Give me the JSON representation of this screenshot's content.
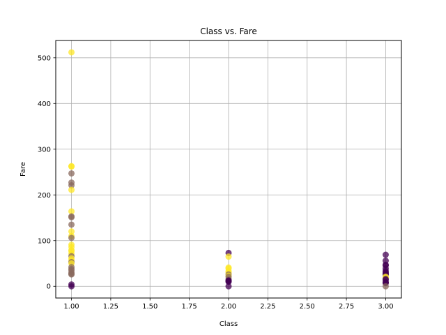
{
  "chart_data": {
    "type": "scatter",
    "title": "Class vs. Fare",
    "xlabel": "Class",
    "ylabel": "Fare",
    "xlim": [
      0.9,
      3.1
    ],
    "ylim": [
      -25.6,
      537.9
    ],
    "xticks": [
      "1.00",
      "1.25",
      "1.50",
      "1.75",
      "2.00",
      "2.25",
      "2.50",
      "2.75",
      "3.00"
    ],
    "yticks": [
      "0",
      "100",
      "200",
      "300",
      "400",
      "500"
    ],
    "grid": true,
    "colors": {
      "survived": "#fde725",
      "died": "#440154",
      "mixed": "#8a6a5e"
    },
    "points": [
      {
        "x": 1,
        "y": 512,
        "c": "survived"
      },
      {
        "x": 1,
        "y": 263,
        "c": "survived"
      },
      {
        "x": 1,
        "y": 262,
        "c": "survived"
      },
      {
        "x": 1,
        "y": 247,
        "c": "mixed"
      },
      {
        "x": 1,
        "y": 227,
        "c": "mixed"
      },
      {
        "x": 1,
        "y": 221,
        "c": "mixed"
      },
      {
        "x": 1,
        "y": 211,
        "c": "survived"
      },
      {
        "x": 1,
        "y": 164,
        "c": "survived"
      },
      {
        "x": 1,
        "y": 153,
        "c": "mixed"
      },
      {
        "x": 1,
        "y": 151,
        "c": "mixed"
      },
      {
        "x": 1,
        "y": 135,
        "c": "mixed"
      },
      {
        "x": 1,
        "y": 120,
        "c": "survived"
      },
      {
        "x": 1,
        "y": 110,
        "c": "survived"
      },
      {
        "x": 1,
        "y": 106,
        "c": "mixed"
      },
      {
        "x": 1,
        "y": 91,
        "c": "survived"
      },
      {
        "x": 1,
        "y": 86,
        "c": "survived"
      },
      {
        "x": 1,
        "y": 79,
        "c": "survived"
      },
      {
        "x": 1,
        "y": 77,
        "c": "survived"
      },
      {
        "x": 1,
        "y": 71,
        "c": "survived"
      },
      {
        "x": 1,
        "y": 66,
        "c": "mixed"
      },
      {
        "x": 1,
        "y": 61,
        "c": "survived"
      },
      {
        "x": 1,
        "y": 57,
        "c": "survived"
      },
      {
        "x": 1,
        "y": 53,
        "c": "mixed"
      },
      {
        "x": 1,
        "y": 50,
        "c": "survived"
      },
      {
        "x": 1,
        "y": 42,
        "c": "mixed"
      },
      {
        "x": 1,
        "y": 38,
        "c": "mixed"
      },
      {
        "x": 1,
        "y": 35,
        "c": "mixed"
      },
      {
        "x": 1,
        "y": 30,
        "c": "mixed"
      },
      {
        "x": 1,
        "y": 27,
        "c": "mixed"
      },
      {
        "x": 1,
        "y": 26,
        "c": "mixed"
      },
      {
        "x": 1,
        "y": 4,
        "c": "died"
      },
      {
        "x": 1,
        "y": 0,
        "c": "died"
      },
      {
        "x": 2,
        "y": 73,
        "c": "died"
      },
      {
        "x": 2,
        "y": 65,
        "c": "survived"
      },
      {
        "x": 2,
        "y": 41,
        "c": "survived"
      },
      {
        "x": 2,
        "y": 39,
        "c": "survived"
      },
      {
        "x": 2,
        "y": 33,
        "c": "survived"
      },
      {
        "x": 2,
        "y": 30,
        "c": "survived"
      },
      {
        "x": 2,
        "y": 26,
        "c": "mixed"
      },
      {
        "x": 2,
        "y": 23,
        "c": "survived"
      },
      {
        "x": 2,
        "y": 21,
        "c": "mixed"
      },
      {
        "x": 2,
        "y": 16,
        "c": "mixed"
      },
      {
        "x": 2,
        "y": 13,
        "c": "died"
      },
      {
        "x": 2,
        "y": 12,
        "c": "died"
      },
      {
        "x": 2,
        "y": 11,
        "c": "died"
      },
      {
        "x": 2,
        "y": 10,
        "c": "died"
      },
      {
        "x": 2,
        "y": 0,
        "c": "died"
      },
      {
        "x": 3,
        "y": 69,
        "c": "died"
      },
      {
        "x": 3,
        "y": 56,
        "c": "died"
      },
      {
        "x": 3,
        "y": 47,
        "c": "died"
      },
      {
        "x": 3,
        "y": 46,
        "c": "died"
      },
      {
        "x": 3,
        "y": 39,
        "c": "died"
      },
      {
        "x": 3,
        "y": 34,
        "c": "died"
      },
      {
        "x": 3,
        "y": 31,
        "c": "died"
      },
      {
        "x": 3,
        "y": 29,
        "c": "died"
      },
      {
        "x": 3,
        "y": 27,
        "c": "died"
      },
      {
        "x": 3,
        "y": 25,
        "c": "died"
      },
      {
        "x": 3,
        "y": 21,
        "c": "survived"
      },
      {
        "x": 3,
        "y": 19,
        "c": "survived"
      },
      {
        "x": 3,
        "y": 16,
        "c": "died"
      },
      {
        "x": 3,
        "y": 14,
        "c": "died"
      },
      {
        "x": 3,
        "y": 9,
        "c": "died"
      },
      {
        "x": 3,
        "y": 8,
        "c": "died"
      },
      {
        "x": 3,
        "y": 7,
        "c": "died"
      },
      {
        "x": 3,
        "y": 0,
        "c": "mixed"
      }
    ]
  }
}
